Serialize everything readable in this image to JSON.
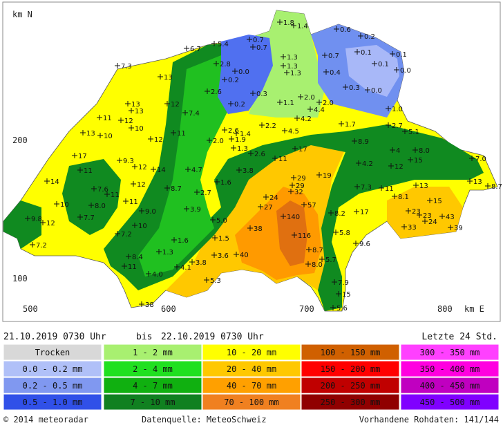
{
  "header": {
    "start": "21.10.2019 0730 Uhr",
    "separator": "bis",
    "end": "22.10.2019 0730 Uhr",
    "period": "Letzte 24 Std."
  },
  "axes": {
    "y_unit": "km N",
    "y_ticks": [
      "200",
      "100"
    ],
    "x_ticks": [
      "500",
      "600",
      "700",
      "800"
    ],
    "x_unit": "km E"
  },
  "legend": [
    [
      "Trocken",
      "0.0 - 0.2 mm",
      "0.2 - 0.5 mm",
      "0.5 - 1.0 mm"
    ],
    [
      "1 - 2 mm",
      "2 - 4 mm",
      "4 - 7 mm",
      "7 - 10 mm"
    ],
    [
      "10 - 20 mm",
      "20 - 40 mm",
      "40 - 70 mm",
      "70 - 100 mm"
    ],
    [
      "100 - 150 mm",
      "150 - 200 mm",
      "200 - 250 mm",
      "250 - 300 mm"
    ],
    [
      "300 - 350 mm",
      "350 - 400 mm",
      "400 - 450 mm",
      "450 - 500 mm"
    ]
  ],
  "stations": [
    "1.8",
    "1.4",
    "0.6",
    "0.2",
    "0.7",
    "0.7",
    "5.4",
    "6.7",
    "0.1",
    "0.1",
    "0.1",
    "0.0",
    "1.3",
    "1.3",
    "1.3",
    "0.7",
    "0.4",
    "0.3",
    "0.0",
    "2.8",
    "0.0",
    "0.2",
    "0.3",
    "2.6",
    "7.3",
    "13",
    "0.2",
    "1.1",
    "2.0",
    "2.0",
    "4.4",
    "4.2",
    "1.0",
    "1.7",
    "2.7",
    "5.1",
    "12",
    "7.4",
    "13",
    "13",
    "11",
    "12",
    "10",
    "13",
    "10",
    "12",
    "11",
    "2.6",
    "1.4",
    "2.2",
    "4.5",
    "1.9",
    "2.0",
    "1.3",
    "2.6",
    "11",
    "17",
    "8.9",
    "8.0",
    "4",
    "17",
    "9.3",
    "12",
    "14",
    "4.7",
    "3.8",
    "4.2",
    "12",
    "15",
    "7.0",
    "11",
    "29",
    "19",
    "14",
    "12",
    "8.7",
    "1.6",
    "29",
    "32",
    "7.3",
    "11",
    "13",
    "13",
    "8.7",
    "7.6",
    "11",
    "2.7",
    "24",
    "8.1",
    "10",
    "11",
    "8.0",
    "27",
    "57",
    "8.2",
    "17",
    "23",
    "23",
    "43",
    "9.0",
    "3.9",
    "15",
    "9.8",
    "12",
    "7.7",
    "140",
    "5.0",
    "24",
    "33",
    "39",
    "10",
    "38",
    "5.8",
    "7.2",
    "1.6",
    "1.5",
    "116",
    "7.2",
    "9.6",
    "1.3",
    "3.6",
    "40",
    "8.7",
    "8.4",
    "3.8",
    "4.1",
    "5.7",
    "8.0",
    "11",
    "4.0",
    "5.3",
    "7.9",
    "15",
    "38",
    "5.6"
  ],
  "footer": {
    "copyright": "© 2014 meteoradar",
    "source": "Datenquelle: MeteoSchweiz",
    "raw_data": "Vorhandene Rohdaten: 141/144"
  }
}
